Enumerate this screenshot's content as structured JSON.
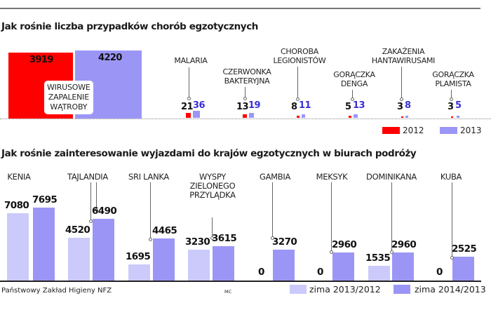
{
  "colors": {
    "y2012": "#ff0000",
    "y2013": "#9b96f6",
    "winter_2013_2012": "#cbcafb",
    "winter_2014_2013": "#9b96f6",
    "value_2013_text": "#3a2fd6"
  },
  "chart1": {
    "title": "Jak rośnie liczba przypadków chorób egzotycznych",
    "hepatitis_label": [
      "WIRUSOWE",
      "ZAPALENIE",
      "WĄTROBY"
    ],
    "legend": {
      "a": "2012",
      "b": "2013"
    }
  },
  "chart2": {
    "title": "Jak rośnie zainteresowanie wyjazdami do krajów egzotycznych w biurach podróży",
    "legend": {
      "a": "zima 2013/2012",
      "b": "zima 2014/2013"
    }
  },
  "footer": {
    "source": "Państwowy Zakład Higieny NFZ",
    "author": "MC"
  },
  "chart_data": [
    {
      "type": "bar",
      "title": "Jak rośnie liczba przypadków chorób egzotycznych",
      "xlabel": "",
      "ylabel": "",
      "grid": false,
      "legend_position": "bottom-right",
      "categories": [
        "WIRUSOWE ZAPALENIE WĄTROBY",
        "MALARIA",
        "CZERWONKA BAKTERYJNA",
        "CHOROBA LEGIONISTÓW",
        "GORĄCZKA DENGA",
        "ZAKAŻENIA HANTAWIRUSAMI",
        "GORĄCZKA PLAMISTA"
      ],
      "series": [
        {
          "name": "2012",
          "values": [
            3919,
            21,
            13,
            8,
            5,
            3,
            3
          ]
        },
        {
          "name": "2013",
          "values": [
            4220,
            36,
            19,
            11,
            13,
            8,
            5
          ]
        }
      ]
    },
    {
      "type": "bar",
      "title": "Jak rośnie zainteresowanie wyjazdami do krajów egzotycznych w biurach podróży",
      "xlabel": "",
      "ylabel": "",
      "grid": false,
      "legend_position": "bottom-right",
      "categories": [
        "KENIA",
        "TAJLANDIA",
        "SRI LANKA",
        "WYSPY ZIELONEGO PRZYLĄDKA",
        "GAMBIA",
        "MEKSYK",
        "DOMINIKANA",
        "KUBA"
      ],
      "series": [
        {
          "name": "zima 2013/2012",
          "values": [
            7080,
            4520,
            1695,
            3230,
            0,
            0,
            1535,
            0
          ]
        },
        {
          "name": "zima 2014/2013",
          "values": [
            7695,
            6490,
            4465,
            3615,
            3270,
            2960,
            2960,
            2525
          ]
        }
      ]
    }
  ]
}
